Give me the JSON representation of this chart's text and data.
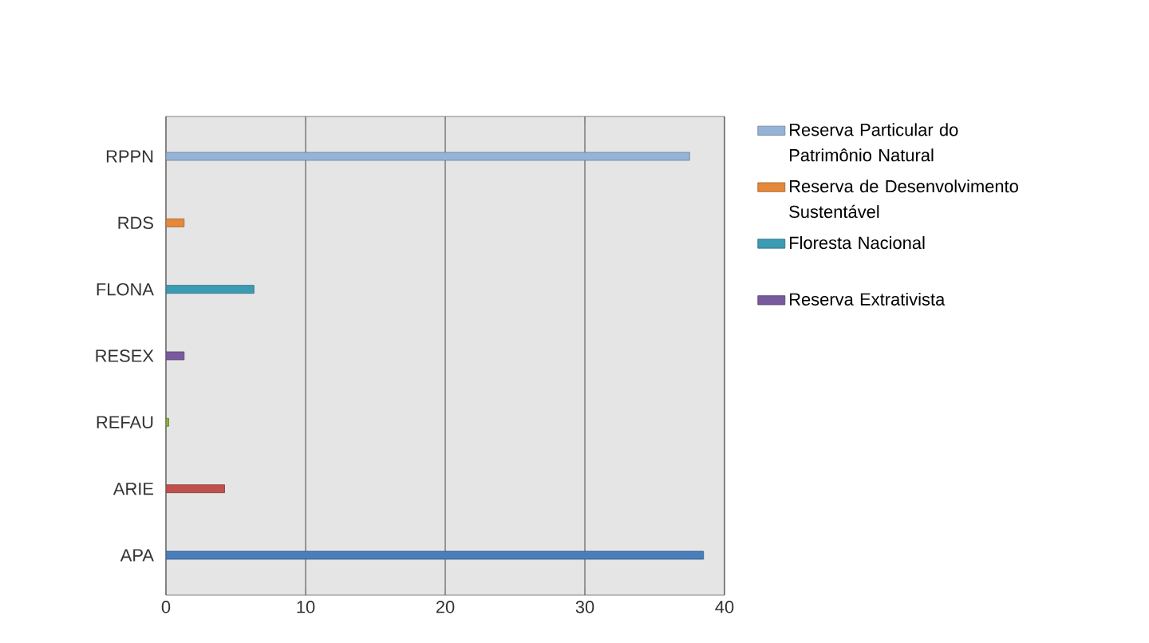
{
  "chart_data": {
    "type": "bar",
    "orientation": "horizontal",
    "categories": [
      "RPPN",
      "RDS",
      "FLONA",
      "RESEX",
      "REFAU",
      "ARIE",
      "APA"
    ],
    "series": [
      {
        "name": "Reserva Particular do Patrimônio Natural",
        "color": "#95b3d7",
        "values": [
          37.5,
          null,
          null,
          null,
          null,
          null,
          null
        ]
      },
      {
        "name": "Reserva de Desenvolvimento Sustentável",
        "color": "#e5883a",
        "values": [
          null,
          1.3,
          null,
          null,
          null,
          null,
          null
        ]
      },
      {
        "name": "Floresta Nacional",
        "color": "#3b9bb3",
        "values": [
          null,
          null,
          6.3,
          null,
          null,
          null,
          null
        ]
      },
      {
        "name": "Reserva Extrativista",
        "color": "#7a5a9e",
        "values": [
          null,
          null,
          null,
          1.3,
          null,
          null,
          null
        ]
      },
      {
        "color": "#8fae3c",
        "values": [
          null,
          null,
          null,
          null,
          0.2,
          null,
          null
        ]
      },
      {
        "color": "#c0504d",
        "values": [
          null,
          null,
          null,
          null,
          null,
          4.2,
          null
        ]
      },
      {
        "color": "#4a7ebb",
        "values": [
          null,
          null,
          null,
          null,
          null,
          null,
          38.5
        ]
      }
    ],
    "xlim": [
      0,
      40
    ],
    "xticks": [
      0,
      10,
      20,
      30,
      40
    ],
    "grid": "x",
    "legend": "right"
  }
}
